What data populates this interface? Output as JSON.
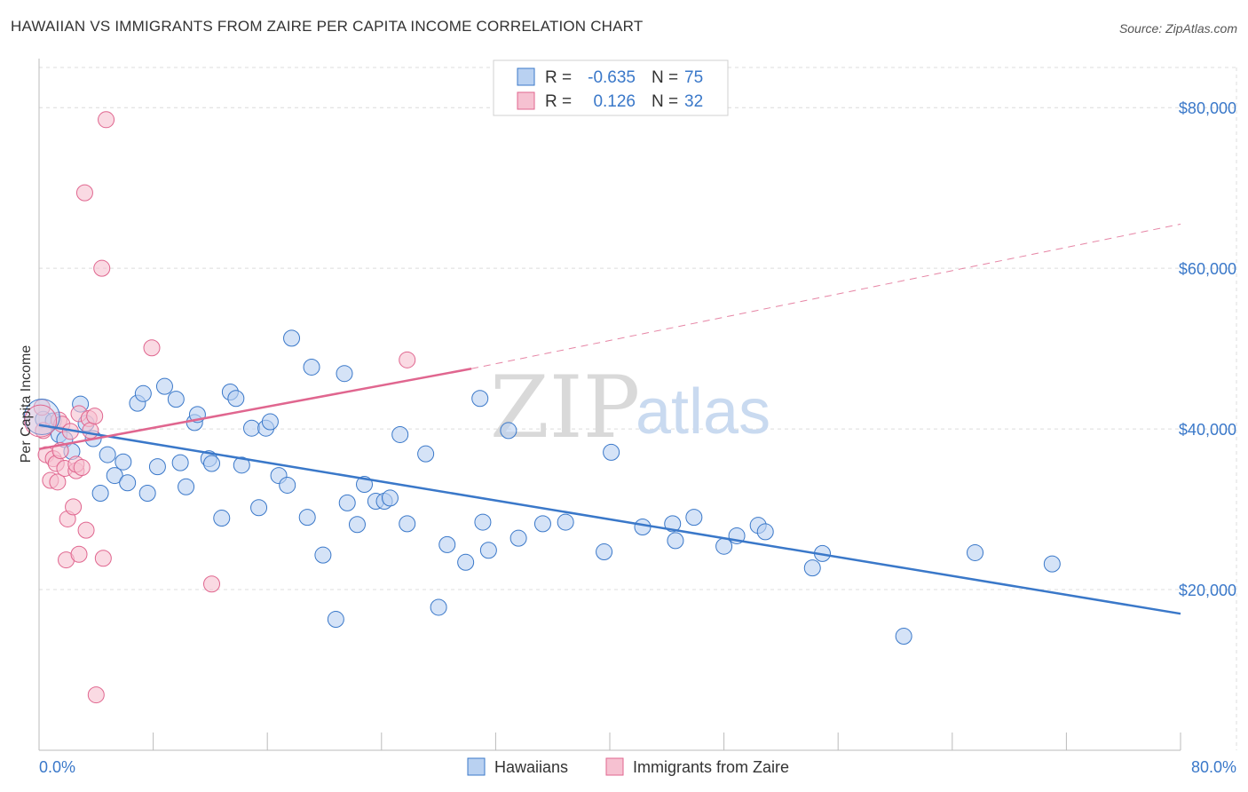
{
  "header": {
    "title": "HAWAIIAN VS IMMIGRANTS FROM ZAIRE PER CAPITA INCOME CORRELATION CHART",
    "source": "Source: ZipAtlas.com"
  },
  "colors": {
    "blue": "#3a78c9",
    "blue_fill": "#b9d1f1",
    "pink": "#e0668f",
    "pink_fill": "#f6c1d1",
    "grid": "#dcdcdc"
  },
  "stats": {
    "rows": [
      {
        "r_label": "R =",
        "r_value": "-0.635",
        "n_label": "N =",
        "n_value": "75"
      },
      {
        "r_label": "R =",
        "r_value": "0.126",
        "n_label": "N =",
        "n_value": "32"
      }
    ]
  },
  "watermark": {
    "part1": "ZIP",
    "part2": "atlas"
  },
  "chart_data": {
    "type": "scatter",
    "xlabel": "",
    "ylabel": "Per Capita Income",
    "xlim": [
      0,
      80
    ],
    "ylim": [
      0,
      85000
    ],
    "x_tick_labels": [
      "0.0%",
      "80.0%"
    ],
    "y_ticks": [
      20000,
      40000,
      60000,
      80000
    ],
    "y_tick_labels": [
      "$20,000",
      "$40,000",
      "$60,000",
      "$80,000"
    ],
    "grid": true,
    "legend_position": "bottom-center",
    "series": [
      {
        "name": "Hawaiians",
        "color": "#3a78c9",
        "trend": {
          "x": [
            0,
            80
          ],
          "y": [
            40500,
            17000
          ],
          "style": "solid"
        },
        "points": [
          [
            0.3,
            41200
          ],
          [
            1.0,
            41000
          ],
          [
            1.4,
            39300
          ],
          [
            1.8,
            38700
          ],
          [
            2.3,
            37200
          ],
          [
            2.9,
            43100
          ],
          [
            3.3,
            40700
          ],
          [
            3.8,
            38800
          ],
          [
            4.3,
            32000
          ],
          [
            4.8,
            36800
          ],
          [
            5.3,
            34200
          ],
          [
            5.9,
            35900
          ],
          [
            6.2,
            33300
          ],
          [
            6.9,
            43200
          ],
          [
            7.3,
            44400
          ],
          [
            7.6,
            32000
          ],
          [
            8.3,
            35300
          ],
          [
            8.8,
            45300
          ],
          [
            9.6,
            43700
          ],
          [
            9.9,
            35800
          ],
          [
            10.3,
            32800
          ],
          [
            10.9,
            40800
          ],
          [
            11.1,
            41800
          ],
          [
            11.9,
            36300
          ],
          [
            12.1,
            35700
          ],
          [
            12.8,
            28900
          ],
          [
            13.4,
            44600
          ],
          [
            13.8,
            43800
          ],
          [
            14.2,
            35500
          ],
          [
            14.9,
            40100
          ],
          [
            15.4,
            30200
          ],
          [
            15.9,
            40100
          ],
          [
            16.2,
            40900
          ],
          [
            16.8,
            34200
          ],
          [
            17.4,
            33000
          ],
          [
            17.7,
            51300
          ],
          [
            18.8,
            29000
          ],
          [
            19.1,
            47700
          ],
          [
            19.9,
            24300
          ],
          [
            20.8,
            16300
          ],
          [
            21.4,
            46900
          ],
          [
            21.6,
            30800
          ],
          [
            22.3,
            28100
          ],
          [
            22.8,
            33100
          ],
          [
            23.6,
            31000
          ],
          [
            24.2,
            31000
          ],
          [
            24.6,
            31400
          ],
          [
            25.3,
            39300
          ],
          [
            25.8,
            28200
          ],
          [
            27.1,
            36900
          ],
          [
            28.0,
            17800
          ],
          [
            28.6,
            25600
          ],
          [
            29.9,
            23400
          ],
          [
            30.9,
            43800
          ],
          [
            31.1,
            28400
          ],
          [
            31.5,
            24900
          ],
          [
            32.9,
            39800
          ],
          [
            33.6,
            26400
          ],
          [
            35.3,
            28200
          ],
          [
            36.9,
            28400
          ],
          [
            39.6,
            24700
          ],
          [
            40.1,
            37100
          ],
          [
            42.3,
            27800
          ],
          [
            44.4,
            28200
          ],
          [
            44.6,
            26100
          ],
          [
            45.9,
            29000
          ],
          [
            48.0,
            25400
          ],
          [
            48.9,
            26700
          ],
          [
            50.4,
            28000
          ],
          [
            50.9,
            27200
          ],
          [
            54.2,
            22700
          ],
          [
            54.9,
            24500
          ],
          [
            60.6,
            14200
          ],
          [
            65.6,
            24600
          ],
          [
            71.0,
            23200
          ]
        ]
      },
      {
        "name": "Immigrants from Zaire",
        "color": "#e0668f",
        "trend": {
          "x": [
            0,
            30.3
          ],
          "y": [
            37500,
            47500
          ],
          "style": "solid",
          "extended": {
            "x": [
              30.3,
              80
            ],
            "y": [
              47500,
              65500
            ],
            "style": "dashed"
          }
        },
        "points": [
          [
            0.2,
            42700
          ],
          [
            0.3,
            39800
          ],
          [
            0.5,
            36800
          ],
          [
            0.8,
            33600
          ],
          [
            1.0,
            36300
          ],
          [
            1.2,
            35700
          ],
          [
            1.3,
            33400
          ],
          [
            1.4,
            41100
          ],
          [
            1.5,
            37300
          ],
          [
            1.6,
            40600
          ],
          [
            1.8,
            35100
          ],
          [
            1.9,
            23700
          ],
          [
            2.0,
            28800
          ],
          [
            2.2,
            39700
          ],
          [
            2.4,
            30300
          ],
          [
            2.6,
            34800
          ],
          [
            2.6,
            35600
          ],
          [
            2.8,
            41900
          ],
          [
            2.8,
            24400
          ],
          [
            3.2,
            69400
          ],
          [
            3.3,
            27400
          ],
          [
            3.5,
            41300
          ],
          [
            3.6,
            39800
          ],
          [
            3.9,
            41600
          ],
          [
            4.4,
            60000
          ],
          [
            4.5,
            23900
          ],
          [
            4.7,
            78500
          ],
          [
            4.0,
            6900
          ],
          [
            7.9,
            50100
          ],
          [
            12.1,
            20700
          ],
          [
            25.8,
            48600
          ],
          [
            3.0,
            35200
          ]
        ]
      }
    ]
  }
}
